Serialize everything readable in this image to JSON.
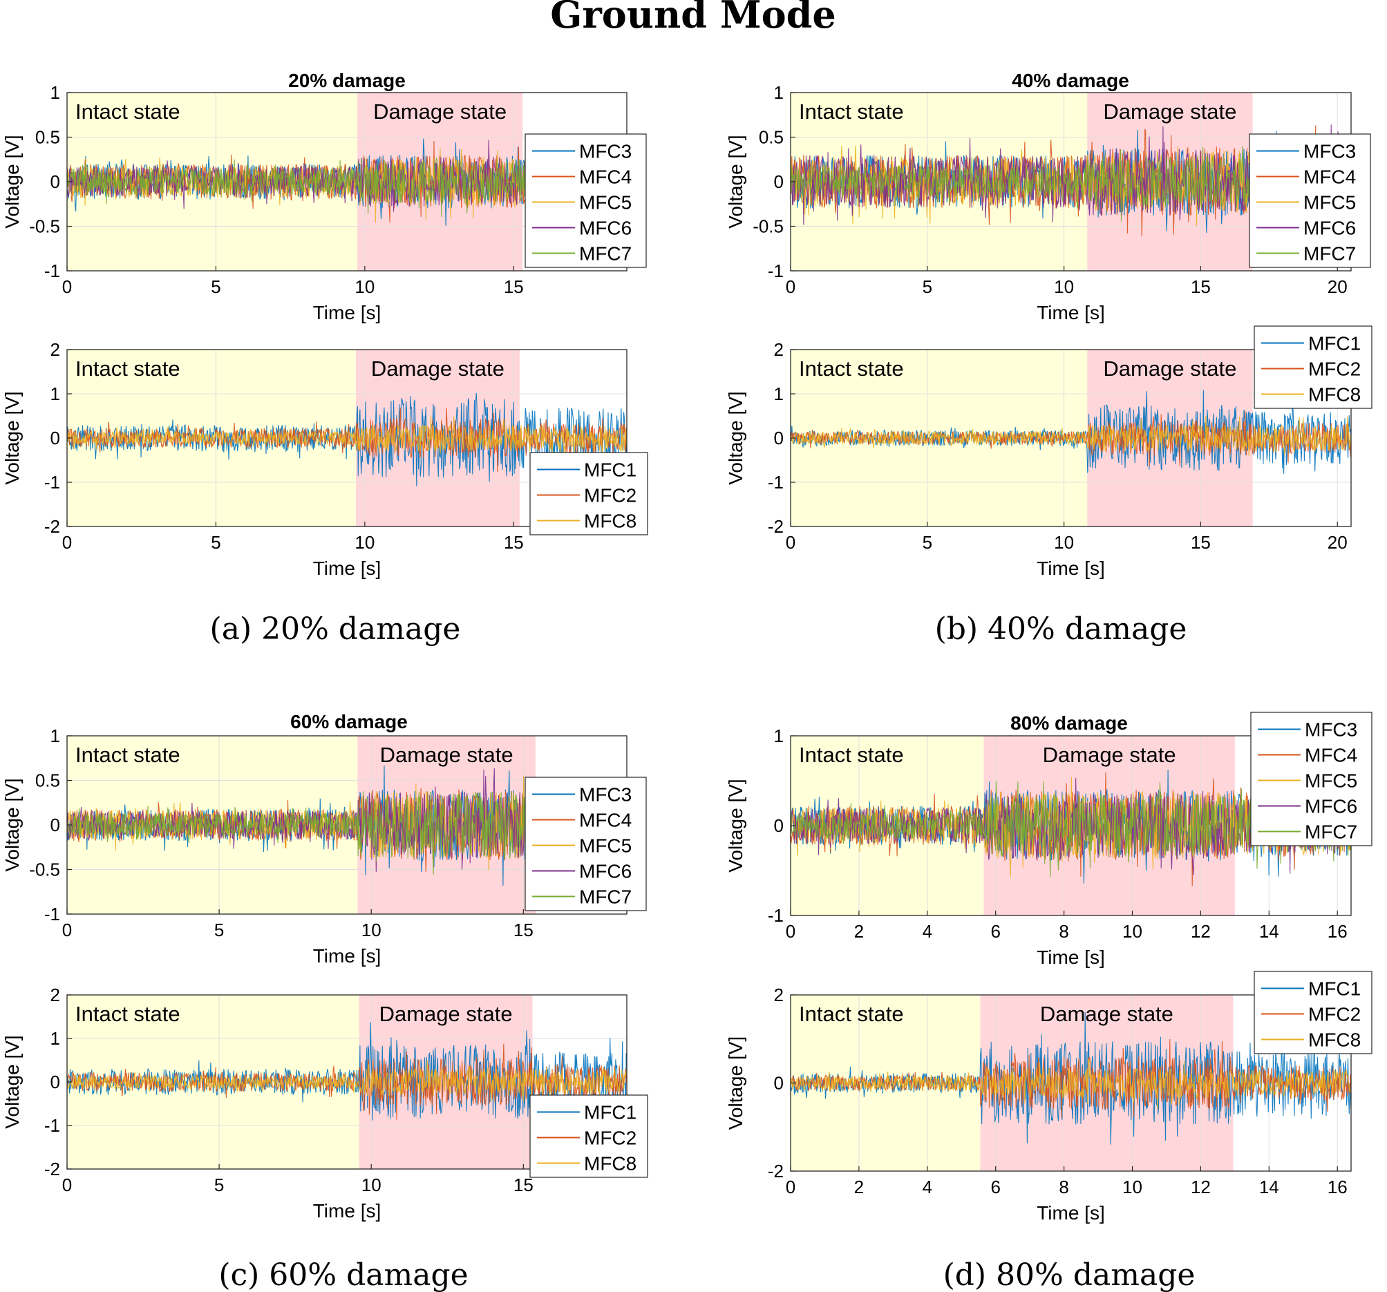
{
  "figure": {
    "title": "Ground Mode"
  },
  "panels": [
    {
      "id": "a",
      "caption": "(a)  20% damage",
      "title": "20% damage"
    },
    {
      "id": "b",
      "caption": "(b)  40% damage",
      "title": "40% damage"
    },
    {
      "id": "c",
      "caption": "(c)  60% damage",
      "title": "60% damage"
    },
    {
      "id": "d",
      "caption": "(d)  80% damage",
      "title": "80% damage"
    }
  ],
  "colors": {
    "MFC1": "#0072BD",
    "MFC2": "#D95319",
    "MFC3": "#0072BD",
    "MFC4": "#D95319",
    "MFC5": "#EDB120",
    "MFC6": "#7E2F8E",
    "MFC7": "#77AC30",
    "MFC8": "#EDB120",
    "intact_bg": "#FFFFD9",
    "damage_bg": "#FFD6DA",
    "grid": "#DFDFDF"
  },
  "chart_data": [
    {
      "type": "line",
      "panel": "a",
      "subplot": "top",
      "title": "20% damage",
      "xlabel": "Time [s]",
      "ylabel": "Voltage [V]",
      "xlim": [
        0,
        18.8
      ],
      "ylim": [
        -1,
        1
      ],
      "xticks": [
        0,
        5,
        10,
        15
      ],
      "yticks": [
        -1,
        -0.5,
        0,
        0.5,
        1
      ],
      "ytick_labels": [
        "-1",
        "-0.5",
        "0",
        "0.5",
        "1"
      ],
      "regions": [
        {
          "label": "Intact state",
          "from": 0,
          "to": 9.75
        },
        {
          "label": "Damage state",
          "from": 9.75,
          "to": 15.3
        }
      ],
      "legend": [
        "MFC3",
        "MFC4",
        "MFC5",
        "MFC6",
        "MFC7"
      ],
      "legend_position": "right",
      "series": [
        {
          "name": "MFC3",
          "intact_amplitude": 0.2,
          "damage_amplitude": 0.3,
          "after_amplitude": 0.32
        },
        {
          "name": "MFC4",
          "intact_amplitude": 0.2,
          "damage_amplitude": 0.3,
          "after_amplitude": 0.32
        },
        {
          "name": "MFC5",
          "intact_amplitude": 0.18,
          "damage_amplitude": 0.28,
          "after_amplitude": 0.3
        },
        {
          "name": "MFC6",
          "intact_amplitude": 0.18,
          "damage_amplitude": 0.28,
          "after_amplitude": 0.3
        },
        {
          "name": "MFC7",
          "intact_amplitude": 0.15,
          "damage_amplitude": 0.25,
          "after_amplitude": 0.28
        }
      ]
    },
    {
      "type": "line",
      "panel": "a",
      "subplot": "bottom",
      "xlabel": "Time [s]",
      "ylabel": "Voltage [V]",
      "xlim": [
        0,
        18.8
      ],
      "ylim": [
        -2,
        2
      ],
      "xticks": [
        0,
        5,
        10,
        15
      ],
      "yticks": [
        -2,
        -1,
        0,
        1,
        2
      ],
      "ytick_labels": [
        "-2",
        "-1",
        "0",
        "1",
        "2"
      ],
      "regions": [
        {
          "label": "Intact state",
          "from": 0,
          "to": 9.7
        },
        {
          "label": "Damage state",
          "from": 9.7,
          "to": 15.2
        }
      ],
      "legend": [
        "MFC1",
        "MFC2",
        "MFC8"
      ],
      "legend_position": "lower-right",
      "series": [
        {
          "name": "MFC1",
          "intact_amplitude": 0.3,
          "damage_amplitude": 0.9,
          "after_amplitude": 0.7
        },
        {
          "name": "MFC2",
          "intact_amplitude": 0.22,
          "damage_amplitude": 0.45,
          "after_amplitude": 0.35
        },
        {
          "name": "MFC8",
          "intact_amplitude": 0.15,
          "damage_amplitude": 0.3,
          "after_amplitude": 0.3
        }
      ]
    },
    {
      "type": "line",
      "panel": "b",
      "subplot": "top",
      "title": "40% damage",
      "xlabel": "Time [s]",
      "ylabel": "Voltage [V]",
      "xlim": [
        0,
        20.5
      ],
      "ylim": [
        -1,
        1
      ],
      "xticks": [
        0,
        5,
        10,
        15,
        20
      ],
      "yticks": [
        -1,
        -0.5,
        0,
        0.5,
        1
      ],
      "ytick_labels": [
        "-1",
        "-0.5",
        "0",
        "0.5",
        "1"
      ],
      "regions": [
        {
          "label": "Intact state",
          "from": 0,
          "to": 10.85
        },
        {
          "label": "Damage state",
          "from": 10.85,
          "to": 16.9
        }
      ],
      "legend": [
        "MFC3",
        "MFC4",
        "MFC5",
        "MFC6",
        "MFC7"
      ],
      "legend_position": "right",
      "series": [
        {
          "name": "MFC3",
          "intact_amplitude": 0.3,
          "damage_amplitude": 0.38,
          "after_amplitude": 0.38
        },
        {
          "name": "MFC4",
          "intact_amplitude": 0.3,
          "damage_amplitude": 0.38,
          "after_amplitude": 0.38
        },
        {
          "name": "MFC5",
          "intact_amplitude": 0.28,
          "damage_amplitude": 0.35,
          "after_amplitude": 0.35
        },
        {
          "name": "MFC6",
          "intact_amplitude": 0.3,
          "damage_amplitude": 0.38,
          "after_amplitude": 0.38
        },
        {
          "name": "MFC7",
          "intact_amplitude": 0.18,
          "damage_amplitude": 0.3,
          "after_amplitude": 0.3
        }
      ]
    },
    {
      "type": "line",
      "panel": "b",
      "subplot": "bottom",
      "xlabel": "Time [s]",
      "ylabel": "Voltage [V]",
      "xlim": [
        0,
        20.5
      ],
      "ylim": [
        -2,
        2
      ],
      "xticks": [
        0,
        5,
        10,
        15,
        20
      ],
      "yticks": [
        -2,
        -1,
        0,
        1,
        2
      ],
      "ytick_labels": [
        "-2",
        "-1",
        "0",
        "1",
        "2"
      ],
      "regions": [
        {
          "label": "Intact state",
          "from": 0,
          "to": 10.85
        },
        {
          "label": "Damage state",
          "from": 10.85,
          "to": 16.9
        }
      ],
      "legend": [
        "MFC1",
        "MFC2",
        "MFC8"
      ],
      "legend_position": "upper-right",
      "series": [
        {
          "name": "MFC1",
          "intact_amplitude": 0.18,
          "damage_amplitude": 0.75,
          "after_amplitude": 0.6
        },
        {
          "name": "MFC2",
          "intact_amplitude": 0.15,
          "damage_amplitude": 0.4,
          "after_amplitude": 0.35
        },
        {
          "name": "MFC8",
          "intact_amplitude": 0.15,
          "damage_amplitude": 0.3,
          "after_amplitude": 0.3
        }
      ]
    },
    {
      "type": "line",
      "panel": "c",
      "subplot": "top",
      "title": "60% damage",
      "xlabel": "Time [s]",
      "ylabel": "Voltage [V]",
      "xlim": [
        0,
        18.4
      ],
      "ylim": [
        -1,
        1
      ],
      "xticks": [
        0,
        5,
        10,
        15
      ],
      "yticks": [
        -1,
        -0.5,
        0,
        0.5,
        1
      ],
      "ytick_labels": [
        "-1",
        "-0.5",
        "0",
        "0.5",
        "1"
      ],
      "regions": [
        {
          "label": "Intact state",
          "from": 0,
          "to": 9.55
        },
        {
          "label": "Damage state",
          "from": 9.55,
          "to": 15.4
        }
      ],
      "legend": [
        "MFC3",
        "MFC4",
        "MFC5",
        "MFC6",
        "MFC7"
      ],
      "legend_position": "right",
      "series": [
        {
          "name": "MFC3",
          "intact_amplitude": 0.18,
          "damage_amplitude": 0.4,
          "after_amplitude": 0.35
        },
        {
          "name": "MFC4",
          "intact_amplitude": 0.18,
          "damage_amplitude": 0.4,
          "after_amplitude": 0.35
        },
        {
          "name": "MFC5",
          "intact_amplitude": 0.17,
          "damage_amplitude": 0.38,
          "after_amplitude": 0.33
        },
        {
          "name": "MFC6",
          "intact_amplitude": 0.16,
          "damage_amplitude": 0.38,
          "after_amplitude": 0.33
        },
        {
          "name": "MFC7",
          "intact_amplitude": 0.13,
          "damage_amplitude": 0.38,
          "after_amplitude": 0.35
        }
      ]
    },
    {
      "type": "line",
      "panel": "c",
      "subplot": "bottom",
      "xlabel": "Time [s]",
      "ylabel": "Voltage [V]",
      "xlim": [
        0,
        18.4
      ],
      "ylim": [
        -2,
        2
      ],
      "xticks": [
        0,
        5,
        10,
        15
      ],
      "yticks": [
        -2,
        -1,
        0,
        1,
        2
      ],
      "ytick_labels": [
        "-2",
        "-1",
        "0",
        "1",
        "2"
      ],
      "regions": [
        {
          "label": "Intact state",
          "from": 0,
          "to": 9.6
        },
        {
          "label": "Damage state",
          "from": 9.6,
          "to": 15.3
        }
      ],
      "legend": [
        "MFC1",
        "MFC2",
        "MFC8"
      ],
      "legend_position": "lower-right",
      "series": [
        {
          "name": "MFC1",
          "intact_amplitude": 0.3,
          "damage_amplitude": 0.85,
          "after_amplitude": 0.7
        },
        {
          "name": "MFC2",
          "intact_amplitude": 0.22,
          "damage_amplitude": 0.55,
          "after_amplitude": 0.4
        },
        {
          "name": "MFC8",
          "intact_amplitude": 0.16,
          "damage_amplitude": 0.32,
          "after_amplitude": 0.3
        }
      ]
    },
    {
      "type": "line",
      "panel": "d",
      "subplot": "top",
      "title": "80% damage",
      "xlabel": "Time [s]",
      "ylabel": "Voltage [V]",
      "xlim": [
        0,
        16.4
      ],
      "ylim": [
        -1,
        1
      ],
      "xticks": [
        0,
        2,
        4,
        6,
        8,
        10,
        12,
        14,
        16
      ],
      "yticks": [
        -1,
        0,
        1
      ],
      "ytick_labels": [
        "-1",
        "0",
        "1"
      ],
      "regions": [
        {
          "label": "Intact state",
          "from": 0,
          "to": 5.65
        },
        {
          "label": "Damage state",
          "from": 5.65,
          "to": 13.0
        }
      ],
      "legend": [
        "MFC3",
        "MFC4",
        "MFC5",
        "MFC6",
        "MFC7"
      ],
      "legend_position": "upper-right",
      "series": [
        {
          "name": "MFC3",
          "intact_amplitude": 0.22,
          "damage_amplitude": 0.4,
          "after_amplitude": 0.35
        },
        {
          "name": "MFC4",
          "intact_amplitude": 0.22,
          "damage_amplitude": 0.4,
          "after_amplitude": 0.35
        },
        {
          "name": "MFC5",
          "intact_amplitude": 0.2,
          "damage_amplitude": 0.38,
          "after_amplitude": 0.33
        },
        {
          "name": "MFC6",
          "intact_amplitude": 0.2,
          "damage_amplitude": 0.38,
          "after_amplitude": 0.33
        },
        {
          "name": "MFC7",
          "intact_amplitude": 0.15,
          "damage_amplitude": 0.35,
          "after_amplitude": 0.3
        }
      ]
    },
    {
      "type": "line",
      "panel": "d",
      "subplot": "bottom",
      "xlabel": "Time [s]",
      "ylabel": "Voltage [V]",
      "xlim": [
        0,
        16.4
      ],
      "ylim": [
        -2,
        2
      ],
      "xticks": [
        0,
        2,
        4,
        6,
        8,
        10,
        12,
        14,
        16
      ],
      "yticks": [
        -2,
        0,
        2
      ],
      "ytick_labels": [
        "-2",
        "0",
        "2"
      ],
      "regions": [
        {
          "label": "Intact state",
          "from": 0,
          "to": 5.55
        },
        {
          "label": "Damage state",
          "from": 5.55,
          "to": 12.95
        }
      ],
      "legend": [
        "MFC1",
        "MFC2",
        "MFC8"
      ],
      "legend_position": "upper-right",
      "series": [
        {
          "name": "MFC1",
          "intact_amplitude": 0.22,
          "damage_amplitude": 0.95,
          "after_amplitude": 0.75
        },
        {
          "name": "MFC2",
          "intact_amplitude": 0.18,
          "damage_amplitude": 0.6,
          "after_amplitude": 0.4
        },
        {
          "name": "MFC8",
          "intact_amplitude": 0.16,
          "damage_amplitude": 0.35,
          "after_amplitude": 0.3
        }
      ]
    }
  ]
}
